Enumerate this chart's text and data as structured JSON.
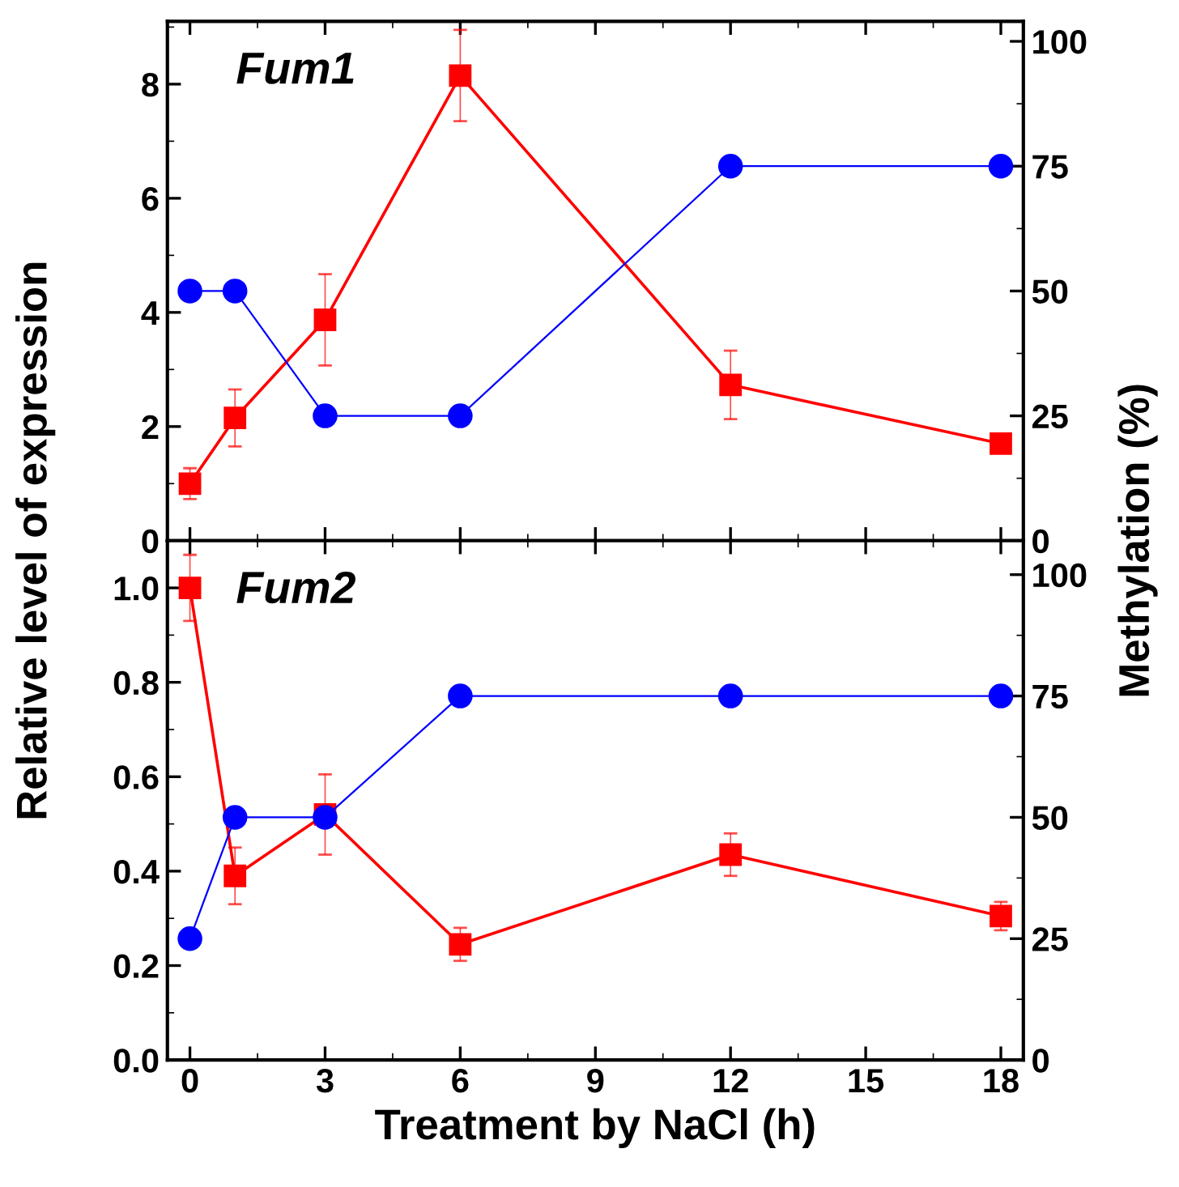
{
  "chart_data": [
    {
      "type": "line",
      "title": "Fum1",
      "ylabel": "Relative level of expression",
      "y2label": "Methylation (%)",
      "x": [
        0,
        1,
        3,
        6,
        12,
        18
      ],
      "xlim": [
        -0.5,
        18.5
      ],
      "xticks": [
        0,
        3,
        6,
        9,
        12,
        15,
        18
      ],
      "ylim": [
        0,
        9.1
      ],
      "yticks": [
        0,
        2,
        4,
        6,
        8
      ],
      "y2lim": [
        0,
        104
      ],
      "y2ticks": [
        0,
        25,
        50,
        75,
        100
      ],
      "tick_labels": "y",
      "grid": false,
      "legend": false,
      "series": [
        {
          "color": "#ff0000",
          "marker": "square",
          "values": [
            1.0,
            2.15,
            3.87,
            8.15,
            2.73,
            1.7
          ],
          "errors": [
            0.27,
            0.5,
            0.8,
            0.8,
            0.6,
            0.12
          ]
        },
        {
          "color": "#0000ff",
          "marker": "circle",
          "axis": "y2",
          "values": [
            50,
            50,
            25,
            25,
            75,
            75
          ]
        }
      ]
    },
    {
      "type": "line",
      "title": "Fum2",
      "xlabel": "Treatment by NaCl (h)",
      "x": [
        0,
        1,
        3,
        6,
        12,
        18
      ],
      "xlim": [
        -0.5,
        18.5
      ],
      "xticks": [
        0,
        3,
        6,
        9,
        12,
        15,
        18
      ],
      "ylim": [
        0,
        1.1
      ],
      "yticks": [
        {
          "value": 0,
          "label": "0.0"
        },
        0.2,
        0.4,
        0.6,
        0.8,
        {
          "value": 1,
          "label": "1.0"
        }
      ],
      "y2lim": [
        0,
        107
      ],
      "y2ticks": [
        0,
        25,
        50,
        75,
        100
      ],
      "grid": false,
      "legend": false,
      "series": [
        {
          "color": "#ff0000",
          "marker": "square",
          "values": [
            1.0,
            0.39,
            0.52,
            0.245,
            0.435,
            0.305
          ],
          "errors": [
            0.07,
            0.06,
            0.085,
            0.035,
            0.045,
            0.03
          ]
        },
        {
          "color": "#0000ff",
          "marker": "circle",
          "axis": "y2",
          "values": [
            25,
            50,
            50,
            75,
            75,
            75
          ]
        }
      ]
    }
  ]
}
